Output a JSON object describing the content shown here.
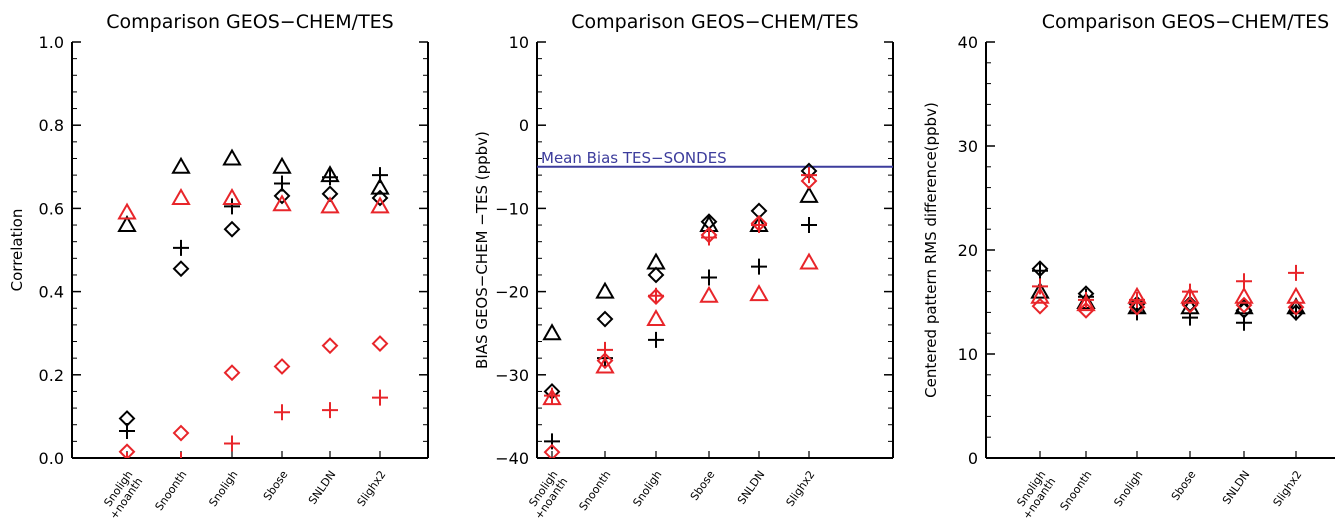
{
  "chart_data": [
    {
      "type": "scatter",
      "title": "Comparison GEOS−CHEM/TES",
      "ylabel": "Correlation",
      "categories": [
        "Snoligh\n+noanth",
        "Snoonth",
        "Snoligh",
        "Sbose",
        "SNLDN",
        "Slighx2"
      ],
      "yticks": [
        "0.0",
        "0.2",
        "0.4",
        "0.6",
        "0.8",
        "1.0"
      ],
      "ylim": [
        0,
        1
      ],
      "series": [
        {
          "marker": "triangle",
          "color": "#000000",
          "values": [
            0.56,
            0.7,
            0.72,
            0.7,
            0.68,
            0.65
          ]
        },
        {
          "marker": "plus",
          "color": "#000000",
          "values": [
            0.065,
            0.505,
            0.605,
            0.66,
            0.675,
            0.68
          ]
        },
        {
          "marker": "diamond",
          "color": "#000000",
          "values": [
            0.095,
            0.455,
            0.55,
            0.63,
            0.635,
            0.625
          ]
        },
        {
          "marker": "triangle",
          "color": "#e8252a",
          "values": [
            0.59,
            0.625,
            0.625,
            0.61,
            0.605,
            0.605
          ]
        },
        {
          "marker": "plus",
          "color": "#e8252a",
          "values": [
            -0.005,
            -0.005,
            0.035,
            0.11,
            0.115,
            0.145
          ]
        },
        {
          "marker": "diamond",
          "color": "#e8252a",
          "values": [
            0.015,
            0.06,
            0.205,
            0.22,
            0.27,
            0.275
          ]
        }
      ]
    },
    {
      "type": "scatter",
      "title": "Comparison GEOS−CHEM/TES",
      "ylabel": "BIAS GEOS−CHEM −TES (ppbv)",
      "categories": [
        "Snoligh\n+noanth",
        "Snoonth",
        "Snoligh",
        "Sbose",
        "SNLDN",
        "Slighx2"
      ],
      "yticks": [
        "−40",
        "−30",
        "−20",
        "−10",
        "0",
        "10"
      ],
      "ylim": [
        -40,
        10
      ],
      "reference_line": {
        "value": -5,
        "label": "Mean Bias TES−SONDES",
        "color": "#3c3c9c"
      },
      "series": [
        {
          "marker": "triangle",
          "color": "#000000",
          "values": [
            -25,
            -20,
            -16.5,
            -12,
            -12,
            -8.5
          ]
        },
        {
          "marker": "plus",
          "color": "#000000",
          "values": [
            -38,
            -28,
            -25.8,
            -18.3,
            -17,
            -12
          ]
        },
        {
          "marker": "diamond",
          "color": "#000000",
          "values": [
            -32,
            -23.3,
            -18,
            -11.6,
            -10.3,
            -5.5
          ]
        },
        {
          "marker": "triangle",
          "color": "#e8252a",
          "values": [
            -32.8,
            -29,
            -23.3,
            -20.5,
            -20.3,
            -16.5
          ]
        },
        {
          "marker": "plus",
          "color": "#e8252a",
          "values": [
            -32.5,
            -27,
            -20.5,
            -13.5,
            -12,
            -6
          ]
        },
        {
          "marker": "diamond",
          "color": "#e8252a",
          "values": [
            -39.3,
            -28.3,
            -20.6,
            -13.2,
            -11.8,
            -6.7
          ]
        }
      ]
    },
    {
      "type": "scatter",
      "title": "Comparison GEOS−CHEM/TES",
      "ylabel": "Centered pattern RMS difference(ppbv)",
      "categories": [
        "Snoligh\n+noanth",
        "Snoonth",
        "Snoligh",
        "Sbose",
        "SNLDN",
        "Slighx2"
      ],
      "yticks": [
        "0",
        "10",
        "20",
        "30",
        "40"
      ],
      "ylim": [
        0,
        40
      ],
      "series": [
        {
          "marker": "triangle",
          "color": "#000000",
          "values": [
            16,
            15,
            14.5,
            14.5,
            14.5,
            14.5
          ]
        },
        {
          "marker": "plus",
          "color": "#000000",
          "values": [
            18,
            15.5,
            14,
            13.5,
            13,
            14
          ]
        },
        {
          "marker": "diamond",
          "color": "#000000",
          "values": [
            18.2,
            15.8,
            14.8,
            14.8,
            14.2,
            14
          ]
        },
        {
          "marker": "triangle",
          "color": "#e8252a",
          "values": [
            15.5,
            14.8,
            15.5,
            15.5,
            15.5,
            15.5
          ]
        },
        {
          "marker": "plus",
          "color": "#e8252a",
          "values": [
            16.5,
            15.2,
            15.2,
            16,
            17,
            17.8
          ]
        },
        {
          "marker": "diamond",
          "color": "#e8252a",
          "values": [
            14.6,
            14.2,
            14.5,
            14.7,
            14.7,
            14.5
          ]
        }
      ]
    }
  ]
}
